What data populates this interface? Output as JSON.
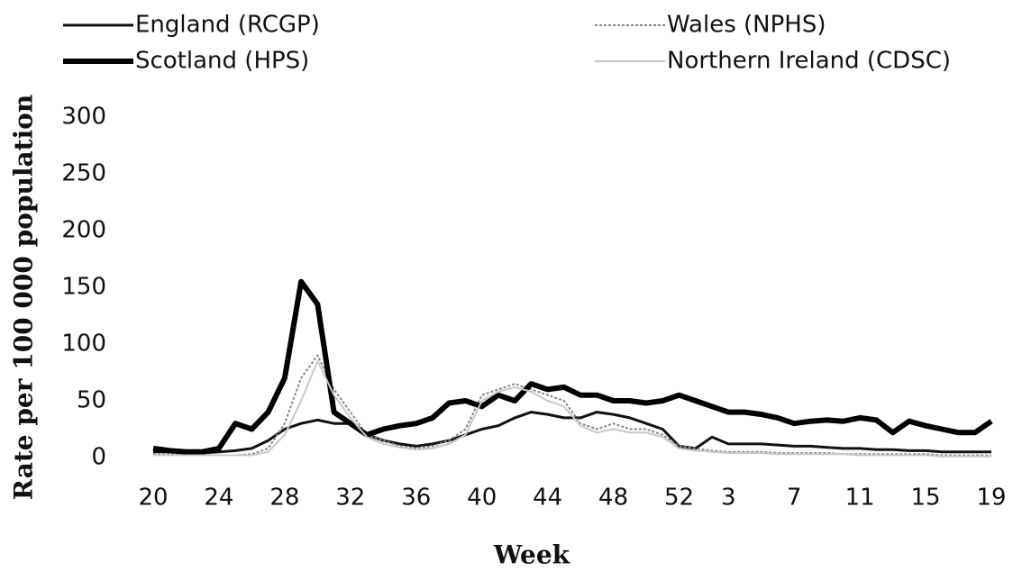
{
  "chart_data": {
    "type": "line",
    "xlabel": "Week",
    "ylabel": "Rate per 100 000 population",
    "categories": [
      20,
      null,
      null,
      null,
      24,
      null,
      null,
      null,
      28,
      null,
      null,
      null,
      32,
      null,
      null,
      null,
      36,
      null,
      null,
      null,
      40,
      null,
      null,
      null,
      44,
      null,
      null,
      null,
      48,
      null,
      null,
      null,
      52,
      null,
      null,
      3,
      null,
      null,
      null,
      7,
      null,
      null,
      null,
      11,
      null,
      null,
      null,
      15,
      null,
      null,
      null,
      19
    ],
    "ylim": [
      0,
      300
    ],
    "yticks": [
      0,
      50,
      100,
      150,
      200,
      250,
      300
    ],
    "series": [
      {
        "name": "England (RCGP)",
        "color": "#111111",
        "width": 3,
        "dashed": false,
        "values": [
          5,
          5,
          4,
          4,
          5,
          6,
          8,
          15,
          25,
          30,
          33,
          30,
          30,
          20,
          15,
          12,
          10,
          12,
          15,
          20,
          25,
          28,
          35,
          40,
          38,
          35,
          35,
          40,
          38,
          35,
          30,
          25,
          10,
          8,
          18,
          12,
          12,
          12,
          11,
          10,
          10,
          9,
          8,
          8,
          7,
          7,
          6,
          6,
          5,
          5,
          5,
          5
        ]
      },
      {
        "name": "Wales (NPHS)",
        "color": "#888888",
        "width": 2,
        "dashed": true,
        "values": [
          3,
          3,
          2,
          2,
          2,
          2,
          3,
          8,
          30,
          70,
          90,
          60,
          40,
          20,
          15,
          10,
          8,
          10,
          15,
          25,
          55,
          60,
          65,
          60,
          55,
          50,
          30,
          25,
          30,
          25,
          25,
          20,
          10,
          8,
          6,
          5,
          5,
          5,
          4,
          4,
          4,
          4,
          3,
          3,
          3,
          3,
          3,
          3,
          2,
          2,
          2,
          2
        ]
      },
      {
        "name": "Scotland (HPS)",
        "color": "#000000",
        "width": 6,
        "dashed": false,
        "values": [
          8,
          6,
          5,
          5,
          8,
          30,
          25,
          40,
          70,
          155,
          135,
          40,
          30,
          20,
          25,
          28,
          30,
          35,
          48,
          50,
          45,
          55,
          50,
          65,
          60,
          62,
          55,
          55,
          50,
          50,
          48,
          50,
          55,
          50,
          45,
          40,
          40,
          38,
          35,
          30,
          32,
          33,
          32,
          35,
          33,
          22,
          32,
          28,
          25,
          22,
          22,
          32
        ]
      },
      {
        "name": "Northern Ireland (CDSC)",
        "color": "#c8c8c8",
        "width": 2,
        "dashed": false,
        "values": [
          2,
          2,
          2,
          2,
          2,
          2,
          2,
          5,
          20,
          50,
          85,
          55,
          35,
          18,
          12,
          9,
          7,
          8,
          12,
          20,
          50,
          58,
          62,
          58,
          50,
          45,
          28,
          22,
          25,
          22,
          22,
          18,
          8,
          6,
          5,
          4,
          4,
          4,
          3,
          3,
          3,
          3,
          3,
          2,
          2,
          2,
          2,
          2,
          1,
          1,
          1,
          1
        ]
      }
    ]
  }
}
